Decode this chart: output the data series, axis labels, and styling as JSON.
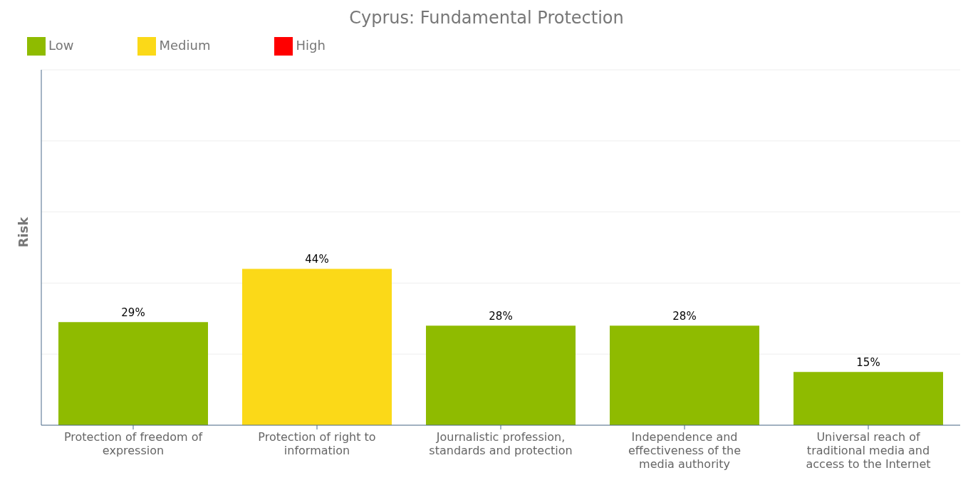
{
  "chart_data": {
    "type": "bar",
    "title": "Cyprus: Fundamental Protection",
    "ylabel": "Risk",
    "categories": [
      "Protection of freedom of expression",
      "Protection of right to information",
      "Journalistic profession, standards and protection",
      "Independence and effectiveness of the media authority",
      "Universal reach of traditional media and access to the Internet"
    ],
    "series": [
      {
        "name": "Low",
        "color": "#8fbb00",
        "values": [
          29,
          null,
          28,
          28,
          15
        ],
        "value_labels": [
          "29%",
          null,
          "28%",
          "28%",
          "15%"
        ]
      },
      {
        "name": "Medium",
        "color": "#fbd918",
        "values": [
          null,
          44,
          null,
          null,
          null
        ],
        "value_labels": [
          null,
          "44%",
          null,
          null,
          null
        ]
      },
      {
        "name": "High",
        "color": "#ff0000",
        "values": [
          null,
          null,
          null,
          null,
          null
        ],
        "value_labels": [
          null,
          null,
          null,
          null,
          null
        ]
      }
    ],
    "stacked": true,
    "ylim": [
      0,
      100
    ],
    "yticks": [
      {
        "value": 0,
        "label": null
      },
      {
        "value": 20,
        "label": null
      },
      {
        "value": 40,
        "label": null
      },
      {
        "value": 60,
        "label": null
      },
      {
        "value": 80,
        "label": null
      },
      {
        "value": 100,
        "label": null
      }
    ],
    "tick_labels": "x",
    "grid": "y",
    "legend": "top left"
  }
}
